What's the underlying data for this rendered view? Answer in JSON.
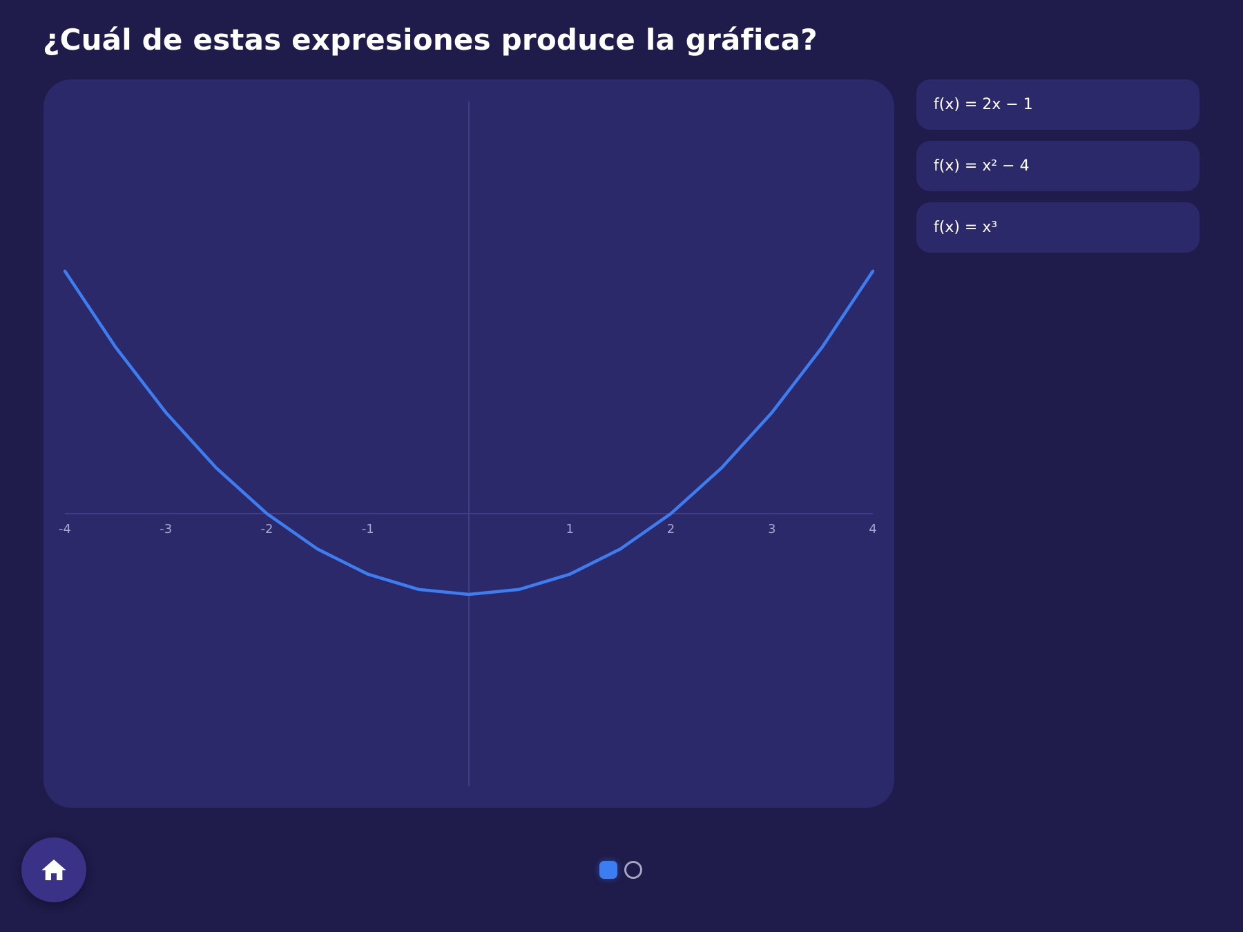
{
  "question": {
    "title": "¿Cuál de estas expresiones produce la gráfica?"
  },
  "options": [
    {
      "label": "f(x) = 2x − 1"
    },
    {
      "label": "f(x) = x² − 4"
    },
    {
      "label": "f(x) = x³"
    }
  ],
  "navigation": {
    "home_icon": "home-icon",
    "pages_total": 2,
    "current_page": 1
  },
  "colors": {
    "background": "#1f1b4a",
    "panel": "#2b2969",
    "curve": "#3d7df2",
    "axis": "#413e85",
    "tick_label": "#a9a6cf"
  },
  "chart_data": {
    "type": "line",
    "title": "",
    "xlabel": "",
    "ylabel": "",
    "xlim": [
      -4,
      4
    ],
    "ylim": [
      -13.5,
      20.4
    ],
    "x_ticks": [
      -4,
      -3,
      -2,
      -1,
      1,
      2,
      3,
      4
    ],
    "x_tick_labels": [
      "-4",
      "-3",
      "-2",
      "-1",
      "1",
      "2",
      "3",
      "4"
    ],
    "y_ticks": [],
    "grid": false,
    "legend": "none",
    "series": [
      {
        "x": [
          -4,
          -3.5,
          -3,
          -2.5,
          -2,
          -1.5,
          -1,
          -0.5,
          0,
          0.5,
          1,
          1.5,
          2,
          2.5,
          3,
          3.5,
          4
        ],
        "y": [
          12,
          8.25,
          5,
          2.25,
          0,
          -1.75,
          -3,
          -3.75,
          -4,
          -3.75,
          -3,
          -1.75,
          0,
          2.25,
          5,
          8.25,
          12
        ]
      }
    ]
  }
}
